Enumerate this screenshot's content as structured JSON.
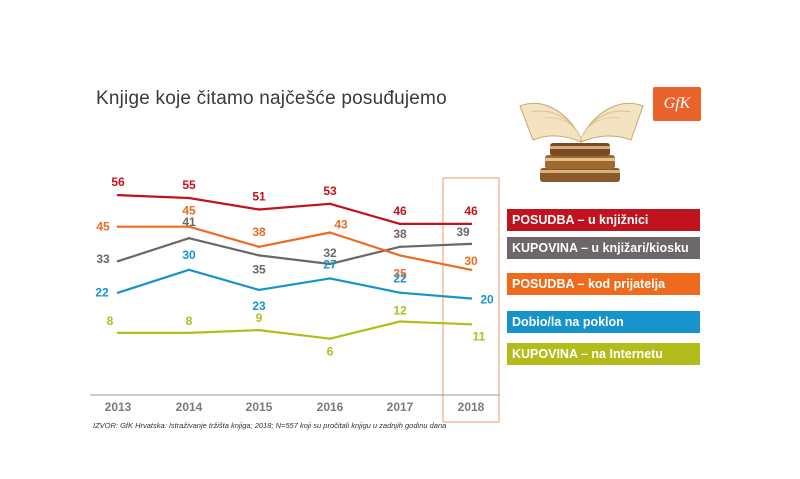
{
  "title": "Knjige koje čitamo najčešće posuđujemo",
  "source": "IZVOR: GfK Hrvatska: Istraživanje tržišta knjiga; 2018; N=557 koji su pročitali knjigu u zadnjih godinu dana",
  "logo": {
    "text": "GfK",
    "color": "#e8622a"
  },
  "image": {
    "icon": "open-book-stack"
  },
  "chart_data": {
    "type": "line",
    "x": [
      "2013",
      "2014",
      "2015",
      "2016",
      "2017",
      "2018"
    ],
    "ylim": [
      0,
      60
    ],
    "highlight_x": "2018",
    "grid": false,
    "legend_position": "right",
    "series": [
      {
        "name": "POSUDBA – u knjižnici",
        "color": "#c0131d",
        "values": [
          56,
          55,
          51,
          53,
          46,
          46
        ]
      },
      {
        "name": "KUPOVINA – u knjižari/kiosku",
        "color": "#6d6767",
        "values": [
          33,
          41,
          35,
          32,
          38,
          39
        ]
      },
      {
        "name": "POSUDBA – kod prijatelja",
        "color": "#ee6b1e",
        "values": [
          45,
          45,
          38,
          43,
          35,
          30
        ]
      },
      {
        "name": "Dobio/la na poklon",
        "color": "#1793cc",
        "values": [
          22,
          30,
          23,
          27,
          22,
          20
        ]
      },
      {
        "name": "KUPOVINA – na Internetu",
        "color": "#b2bd1b",
        "values": [
          8,
          8,
          9,
          6,
          12,
          11
        ]
      }
    ]
  }
}
